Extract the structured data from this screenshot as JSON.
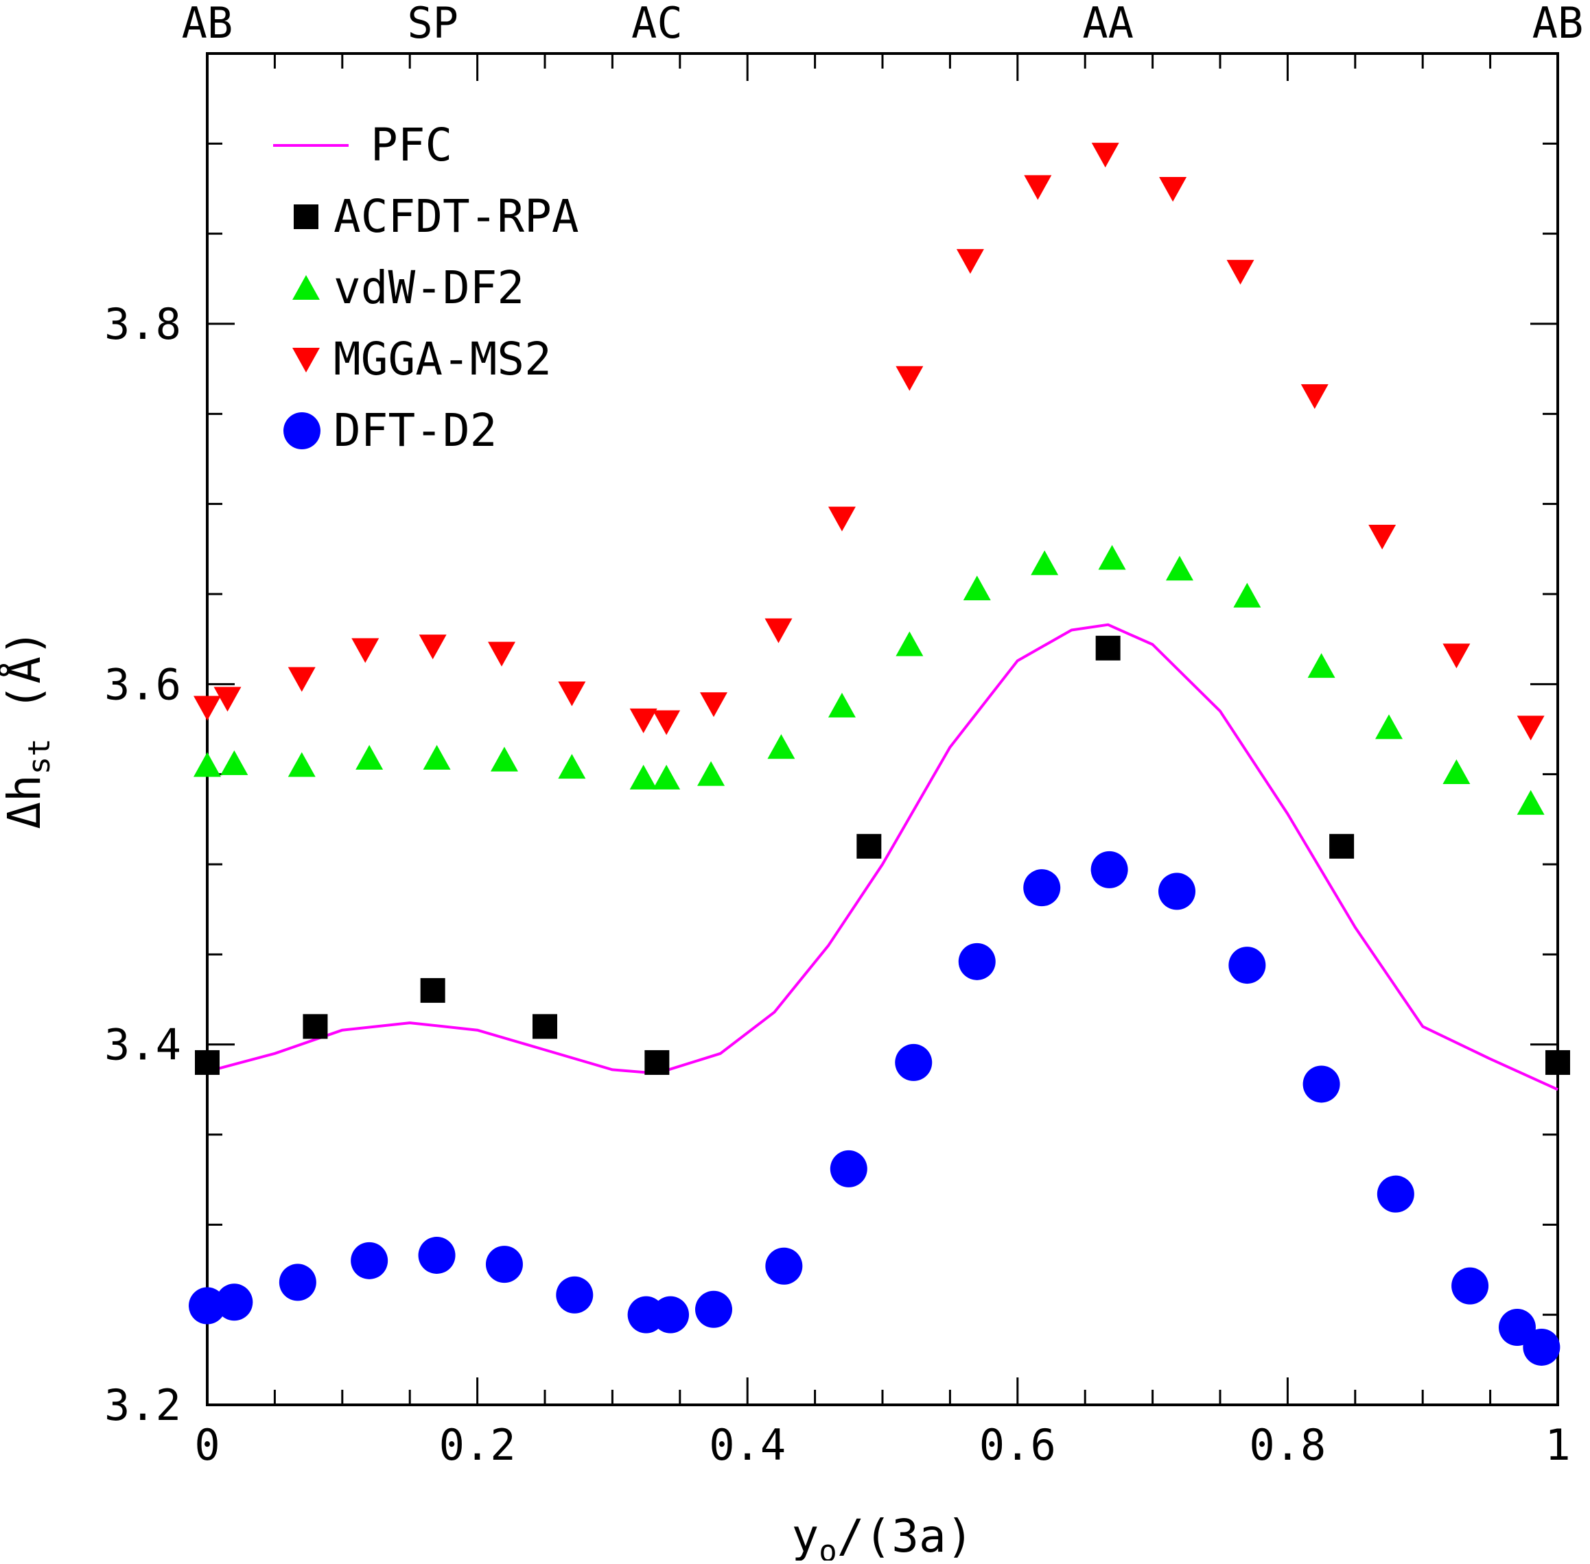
{
  "chart_data": {
    "type": "scatter",
    "xlabel": "y",
    "xlabel_sub": "o",
    "xlabel_suffix": "/(3a)",
    "ylabel": "Δh",
    "ylabel_sub": "st",
    "ylabel_unit": "(Å)",
    "xlim": [
      0,
      1
    ],
    "ylim": [
      3.2,
      3.95
    ],
    "x_ticks": [
      0,
      0.2,
      0.4,
      0.6,
      0.8,
      1
    ],
    "x_tick_labels": [
      "0",
      "0.2",
      "0.4",
      "0.6",
      "0.8",
      "1"
    ],
    "x_minor_step": 0.05,
    "y_ticks": [
      3.2,
      3.4,
      3.6,
      3.8
    ],
    "y_tick_labels": [
      "3.2",
      "3.4",
      "3.6",
      "3.8"
    ],
    "y_minor_step": 0.05,
    "top_axis_labels": [
      {
        "x": 0,
        "label": "AB"
      },
      {
        "x": 0.167,
        "label": "SP"
      },
      {
        "x": 0.333,
        "label": "AC"
      },
      {
        "x": 0.667,
        "label": "AA"
      },
      {
        "x": 1,
        "label": "AB"
      }
    ],
    "legend_position": "top-left",
    "grid": false,
    "series": [
      {
        "name": "PFC",
        "marker": "line",
        "color": "#ff00ff",
        "x": [
          0,
          0.05,
          0.1,
          0.15,
          0.2,
          0.25,
          0.3,
          0.333,
          0.38,
          0.42,
          0.46,
          0.5,
          0.55,
          0.6,
          0.64,
          0.667,
          0.7,
          0.75,
          0.8,
          0.85,
          0.9,
          0.95,
          1
        ],
        "y": [
          3.385,
          3.395,
          3.408,
          3.412,
          3.408,
          3.397,
          3.386,
          3.384,
          3.395,
          3.418,
          3.455,
          3.5,
          3.565,
          3.613,
          3.63,
          3.633,
          3.622,
          3.585,
          3.528,
          3.465,
          3.41,
          3.392,
          3.375
        ]
      },
      {
        "name": "ACFDT-RPA",
        "marker": "square",
        "color": "#000000",
        "x": [
          0,
          0.08,
          0.167,
          0.25,
          0.333,
          0.49,
          0.667,
          0.84,
          1
        ],
        "y": [
          3.39,
          3.41,
          3.43,
          3.41,
          3.39,
          3.51,
          3.62,
          3.51,
          3.39
        ]
      },
      {
        "name": "vdW-DF2",
        "marker": "triangle-up",
        "color": "#00ee00",
        "x": [
          0,
          0.02,
          0.07,
          0.12,
          0.17,
          0.22,
          0.27,
          0.323,
          0.34,
          0.373,
          0.425,
          0.47,
          0.52,
          0.57,
          0.62,
          0.67,
          0.72,
          0.77,
          0.825,
          0.875,
          0.925,
          0.98
        ],
        "y": [
          3.555,
          3.556,
          3.555,
          3.559,
          3.559,
          3.558,
          3.554,
          3.548,
          3.548,
          3.55,
          3.565,
          3.588,
          3.622,
          3.653,
          3.667,
          3.67,
          3.664,
          3.649,
          3.61,
          3.576,
          3.551,
          3.534
        ]
      },
      {
        "name": "MGGA-MS2",
        "marker": "triangle-down",
        "color": "#ff0000",
        "x": [
          0,
          0.015,
          0.07,
          0.117,
          0.167,
          0.218,
          0.27,
          0.323,
          0.34,
          0.375,
          0.423,
          0.47,
          0.52,
          0.565,
          0.615,
          0.665,
          0.715,
          0.765,
          0.82,
          0.87,
          0.925,
          0.98
        ],
        "y": [
          3.587,
          3.592,
          3.603,
          3.619,
          3.621,
          3.617,
          3.595,
          3.58,
          3.579,
          3.589,
          3.63,
          3.692,
          3.77,
          3.835,
          3.876,
          3.894,
          3.875,
          3.829,
          3.76,
          3.682,
          3.616,
          3.576
        ]
      },
      {
        "name": "DFT-D2",
        "marker": "circle",
        "color": "#0000ff",
        "x": [
          0,
          0.02,
          0.067,
          0.12,
          0.17,
          0.22,
          0.272,
          0.325,
          0.343,
          0.375,
          0.427,
          0.475,
          0.523,
          0.57,
          0.618,
          0.668,
          0.718,
          0.77,
          0.825,
          0.88,
          0.935,
          0.97,
          0.988
        ],
        "y": [
          3.255,
          3.257,
          3.268,
          3.28,
          3.283,
          3.278,
          3.261,
          3.25,
          3.25,
          3.253,
          3.277,
          3.331,
          3.39,
          3.446,
          3.487,
          3.497,
          3.485,
          3.444,
          3.378,
          3.317,
          3.266,
          3.243,
          3.232
        ]
      }
    ]
  }
}
